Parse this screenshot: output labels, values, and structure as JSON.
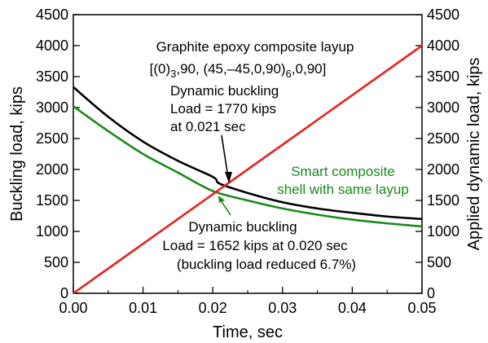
{
  "chart_data": {
    "type": "line",
    "xlabel": "Time, sec",
    "ylabel_left": "Buckling load, kips",
    "ylabel_right": "Applied dynamic load, kips",
    "xlim": [
      0,
      0.05
    ],
    "ylim": [
      0,
      4500
    ],
    "x_ticks": [
      "0.00",
      "0.01",
      "0.02",
      "0.03",
      "0.04",
      "0.05"
    ],
    "y_ticks_left": [
      "0",
      "500",
      "1000",
      "1500",
      "2000",
      "2500",
      "3000",
      "3500",
      "4000",
      "4500"
    ],
    "y_ticks_right": [
      "0",
      "500",
      "1000",
      "1500",
      "2000",
      "2500",
      "3000",
      "3500",
      "4000",
      "4500"
    ],
    "series": [
      {
        "color": "#000000",
        "x": [
          0,
          0.005,
          0.01,
          0.015,
          0.02,
          0.021,
          0.025,
          0.03,
          0.035,
          0.04,
          0.045,
          0.05
        ],
        "y": [
          3330,
          2850,
          2450,
          2140,
          1880,
          1770,
          1620,
          1470,
          1370,
          1300,
          1240,
          1200
        ]
      },
      {
        "color": "#1a8a1a",
        "x": [
          0,
          0.005,
          0.01,
          0.015,
          0.02,
          0.025,
          0.03,
          0.035,
          0.04,
          0.045,
          0.05
        ],
        "y": [
          3020,
          2620,
          2250,
          1950,
          1652,
          1500,
          1370,
          1270,
          1190,
          1130,
          1080
        ]
      },
      {
        "color": "#e82020",
        "x": [
          0,
          0.05
        ],
        "y": [
          0,
          4000
        ]
      }
    ],
    "annotations": {
      "title_line1": "Graphite epoxy composite layup",
      "title_line2": "[(0)3,90, (45,–45,0,90)6,0,90]",
      "black_line1": "Dynamic buckling",
      "black_line2": "Load = 1770 kips",
      "black_line3": "at 0.021 sec",
      "green_label_line1": "Smart composite",
      "green_label_line2": "shell with same layup",
      "green_line1": "Dynamic buckling",
      "green_line2": "Load = 1652 kips at 0.020 sec",
      "green_line3": "(buckling load reduced 6.7%)"
    },
    "grid": false
  }
}
